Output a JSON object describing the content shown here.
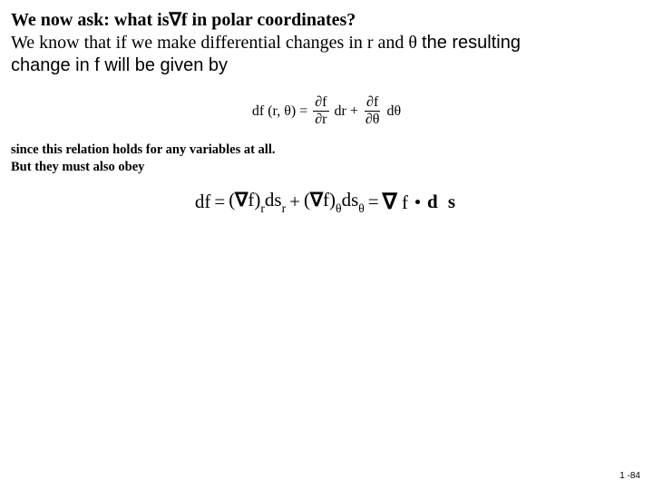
{
  "heading": {
    "q_part1": "We now ask: what is",
    "nabla": "∇",
    "q_f": "f",
    "q_part2": " in polar coordinates?",
    "line2a": "We know that if we make differential changes in r and ",
    "theta": "θ",
    "line2b": "the resulting",
    "line3": "change in f will be given by"
  },
  "eq1": {
    "lhs1": "df (r, ",
    "lhs_theta": "θ",
    "lhs2": ") =",
    "frac1_num_d": "∂",
    "frac1_num_f": "f",
    "frac1_den_d": "∂",
    "frac1_den_r": "r",
    "dr": "dr +",
    "frac2_num_d": "∂",
    "frac2_num_f": "f",
    "frac2_den_d": "∂",
    "frac2_den_th": "θ",
    "dtheta_d": "d",
    "dtheta_th": "θ"
  },
  "since": {
    "l1": "since this relation holds for any variables at all.",
    "l2": "But they must also obey"
  },
  "eq2": {
    "df": "df",
    "eq": "=",
    "lpar": "(",
    "nabla": "∇",
    "f": "f",
    "rpar": ")",
    "r": "r",
    "ds": "ds",
    "plus": "+",
    "theta": "θ",
    "eq2": "=",
    "grad_f": "f",
    "dots": "d s"
  },
  "page": "1 -84"
}
